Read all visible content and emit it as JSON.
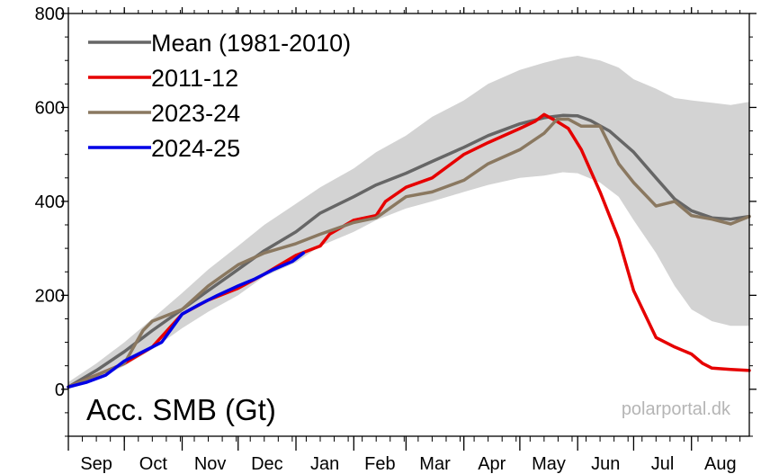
{
  "chart_data": {
    "type": "line",
    "title": "",
    "ylabel": "Acc. SMB (Gt)",
    "xlabel": "",
    "credit": "polarportal.dk",
    "ylim": [
      -100,
      800
    ],
    "yticks": [
      0,
      200,
      400,
      600,
      800
    ],
    "xlim": [
      0,
      365
    ],
    "months": [
      {
        "label": "Sep",
        "start": 0
      },
      {
        "label": "Oct",
        "start": 30
      },
      {
        "label": "Nov",
        "start": 61
      },
      {
        "label": "Dec",
        "start": 91
      },
      {
        "label": "Jan",
        "start": 122
      },
      {
        "label": "Feb",
        "start": 153
      },
      {
        "label": "Mar",
        "start": 181
      },
      {
        "label": "Apr",
        "start": 212
      },
      {
        "label": "May",
        "start": 242
      },
      {
        "label": "Jun",
        "start": 273
      },
      {
        "label": "Jul",
        "start": 303
      },
      {
        "label": "Aug",
        "start": 334
      }
    ],
    "legend_placement": "top-left",
    "band": {
      "color": "#d3d3d3",
      "x": [
        0,
        15,
        30,
        45,
        61,
        75,
        91,
        105,
        122,
        135,
        153,
        165,
        181,
        195,
        212,
        225,
        242,
        255,
        265,
        273,
        285,
        295,
        303,
        315,
        325,
        334,
        345,
        355,
        365
      ],
      "upper": [
        15,
        55,
        100,
        150,
        205,
        255,
        305,
        350,
        395,
        430,
        470,
        505,
        540,
        580,
        615,
        650,
        680,
        695,
        705,
        710,
        700,
        685,
        660,
        640,
        620,
        615,
        610,
        605,
        612
      ],
      "lower": [
        0,
        20,
        50,
        85,
        130,
        165,
        200,
        240,
        270,
        305,
        335,
        360,
        385,
        400,
        420,
        435,
        450,
        455,
        462,
        460,
        440,
        410,
        360,
        290,
        220,
        170,
        145,
        135,
        135
      ]
    },
    "series": [
      {
        "name": "Mean (1981-2010)",
        "color": "#666666",
        "x": [
          0,
          15,
          30,
          45,
          61,
          75,
          91,
          105,
          122,
          135,
          153,
          165,
          181,
          195,
          212,
          225,
          242,
          255,
          265,
          273,
          280,
          290,
          303,
          315,
          325,
          334,
          345,
          355,
          365
        ],
        "y": [
          5,
          40,
          80,
          125,
          170,
          210,
          255,
          295,
          335,
          375,
          410,
          435,
          460,
          485,
          515,
          540,
          565,
          578,
          583,
          582,
          572,
          550,
          505,
          450,
          405,
          380,
          365,
          362,
          368
        ]
      },
      {
        "name": "2011-12",
        "color": "#e60000",
        "x": [
          0,
          15,
          30,
          45,
          61,
          75,
          91,
          105,
          122,
          135,
          140,
          153,
          165,
          170,
          181,
          195,
          212,
          225,
          242,
          250,
          255,
          262,
          268,
          275,
          285,
          295,
          303,
          315,
          325,
          334,
          340,
          345,
          355,
          365
        ],
        "y": [
          5,
          30,
          55,
          90,
          160,
          190,
          215,
          245,
          285,
          305,
          330,
          360,
          370,
          400,
          430,
          450,
          500,
          525,
          555,
          570,
          585,
          570,
          555,
          510,
          420,
          320,
          210,
          110,
          90,
          75,
          55,
          45,
          42,
          40
        ]
      },
      {
        "name": "2023-24",
        "color": "#8a7860",
        "x": [
          0,
          15,
          30,
          40,
          45,
          61,
          75,
          91,
          105,
          122,
          135,
          153,
          165,
          181,
          195,
          212,
          225,
          242,
          255,
          262,
          268,
          275,
          285,
          295,
          303,
          315,
          325,
          334,
          345,
          355,
          365
        ],
        "y": [
          5,
          30,
          55,
          125,
          145,
          170,
          220,
          265,
          290,
          310,
          330,
          355,
          365,
          410,
          420,
          445,
          480,
          510,
          545,
          575,
          575,
          560,
          560,
          480,
          440,
          390,
          400,
          370,
          362,
          352,
          368
        ]
      },
      {
        "name": "2024-25",
        "color": "#0000e6",
        "x": [
          0,
          10,
          20,
          30,
          40,
          50,
          61,
          70,
          80,
          91,
          100,
          110,
          120,
          126
        ],
        "y": [
          5,
          15,
          30,
          60,
          80,
          100,
          160,
          180,
          200,
          220,
          235,
          255,
          272,
          290
        ]
      }
    ]
  }
}
